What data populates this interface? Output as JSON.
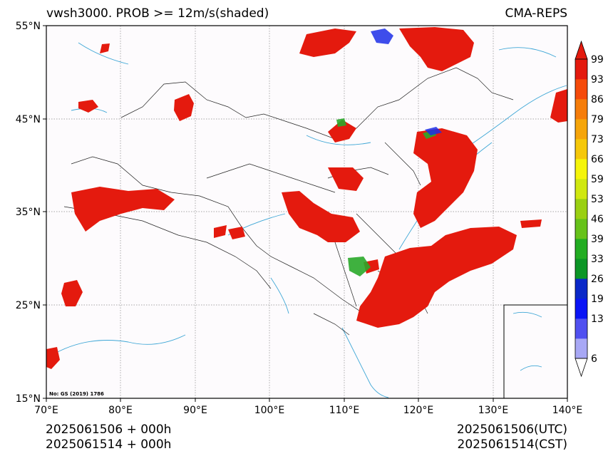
{
  "header": {
    "title_left": "vwsh3000. PROB >= 12m/s(shaded)",
    "title_right": "CMA-REPS"
  },
  "map": {
    "lat_labels": [
      "55°N",
      "45°N",
      "35°N",
      "25°N",
      "15°N"
    ],
    "lon_labels": [
      "70°E",
      "80°E",
      "90°E",
      "100°E",
      "110°E",
      "120°E",
      "130°E",
      "140°E"
    ],
    "approval_note": "No: GS (2019) 1786",
    "shading_color": "#e41a0e",
    "background_color": "#fdfbfd",
    "coast_color": "#3fa7d6"
  },
  "colorbar": {
    "labels": [
      "6",
      "13",
      "19",
      "26",
      "33",
      "39",
      "46",
      "53",
      "59",
      "66",
      "73",
      "79",
      "86",
      "93",
      "99"
    ],
    "colors": [
      "#a8a8f5",
      "#5050f0",
      "#0a14f5",
      "#0a28c8",
      "#0c9626",
      "#22ad22",
      "#66c21a",
      "#9ad012",
      "#d0e810",
      "#f5f50a",
      "#f5c80a",
      "#f5a50a",
      "#f57d0a",
      "#f54a0a",
      "#e41a0e"
    ]
  },
  "footer": {
    "left_line1": "2025061506  +  000h",
    "left_line2": "2025061514  +  000h",
    "right_line1": "2025061506(UTC)",
    "right_line2": "2025061514(CST)"
  }
}
